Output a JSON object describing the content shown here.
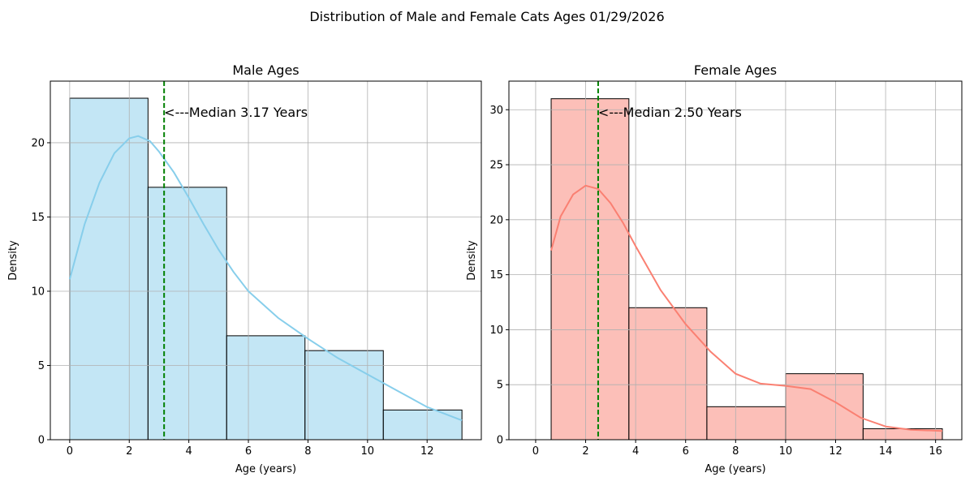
{
  "suptitle": "Distribution of Male and Female Cats Ages 01/29/2026",
  "chart_data": [
    {
      "type": "bar",
      "title": "Male Ages",
      "xlabel": "Age (years)",
      "ylabel": "Density",
      "xlim": [
        -0.65,
        13.82
      ],
      "ylim": [
        0,
        24.15
      ],
      "xticks": [
        0,
        2,
        4,
        6,
        8,
        10,
        12
      ],
      "yticks": [
        0,
        5,
        10,
        15,
        20
      ],
      "grid": true,
      "bin_edges": [
        0,
        2.63,
        5.27,
        7.9,
        10.53,
        13.17
      ],
      "values": [
        23,
        17,
        7,
        6,
        2
      ],
      "bar_color": "#87ceeb",
      "kde_color": "#87ceeb",
      "kde": {
        "x": [
          0,
          0.5,
          1,
          1.5,
          2,
          2.3,
          2.7,
          3,
          3.5,
          4,
          4.5,
          5,
          5.5,
          6,
          7,
          8,
          9,
          10,
          11,
          12,
          13.17
        ],
        "y": [
          10.8,
          14.5,
          17.3,
          19.3,
          20.3,
          20.45,
          20.1,
          19.4,
          18.0,
          16.3,
          14.5,
          12.8,
          11.3,
          10.0,
          8.2,
          6.8,
          5.5,
          4.4,
          3.3,
          2.2,
          1.3
        ]
      },
      "median": 3.17,
      "median_color": "#008000",
      "annotation": "<---Median 3.17 Years"
    },
    {
      "type": "bar",
      "title": "Female Ages",
      "xlabel": "Age (years)",
      "ylabel": "Density",
      "xlim": [
        -1.07,
        17.05
      ],
      "ylim": [
        0,
        32.6
      ],
      "xticks": [
        0,
        2,
        4,
        6,
        8,
        10,
        12,
        14,
        16
      ],
      "yticks": [
        0,
        5,
        10,
        15,
        20,
        25,
        30
      ],
      "grid": true,
      "bin_edges": [
        0.62,
        3.73,
        6.85,
        10.0,
        13.1,
        16.27
      ],
      "values": [
        31,
        12,
        3,
        6,
        1
      ],
      "bar_color": "#fa8072",
      "kde_color": "#fa8072",
      "kde": {
        "x": [
          0.62,
          1,
          1.5,
          2,
          2.5,
          3,
          3.5,
          4,
          5,
          6,
          7,
          8,
          9,
          10,
          11,
          12,
          13,
          14,
          15,
          16.27
        ],
        "y": [
          17.2,
          20.3,
          22.3,
          23.1,
          22.8,
          21.5,
          19.7,
          17.6,
          13.6,
          10.5,
          8.0,
          6.0,
          5.1,
          4.9,
          4.6,
          3.4,
          2.0,
          1.2,
          0.9,
          0.8
        ]
      },
      "median": 2.5,
      "median_color": "#008000",
      "annotation": "<---Median 2.50 Years"
    }
  ]
}
